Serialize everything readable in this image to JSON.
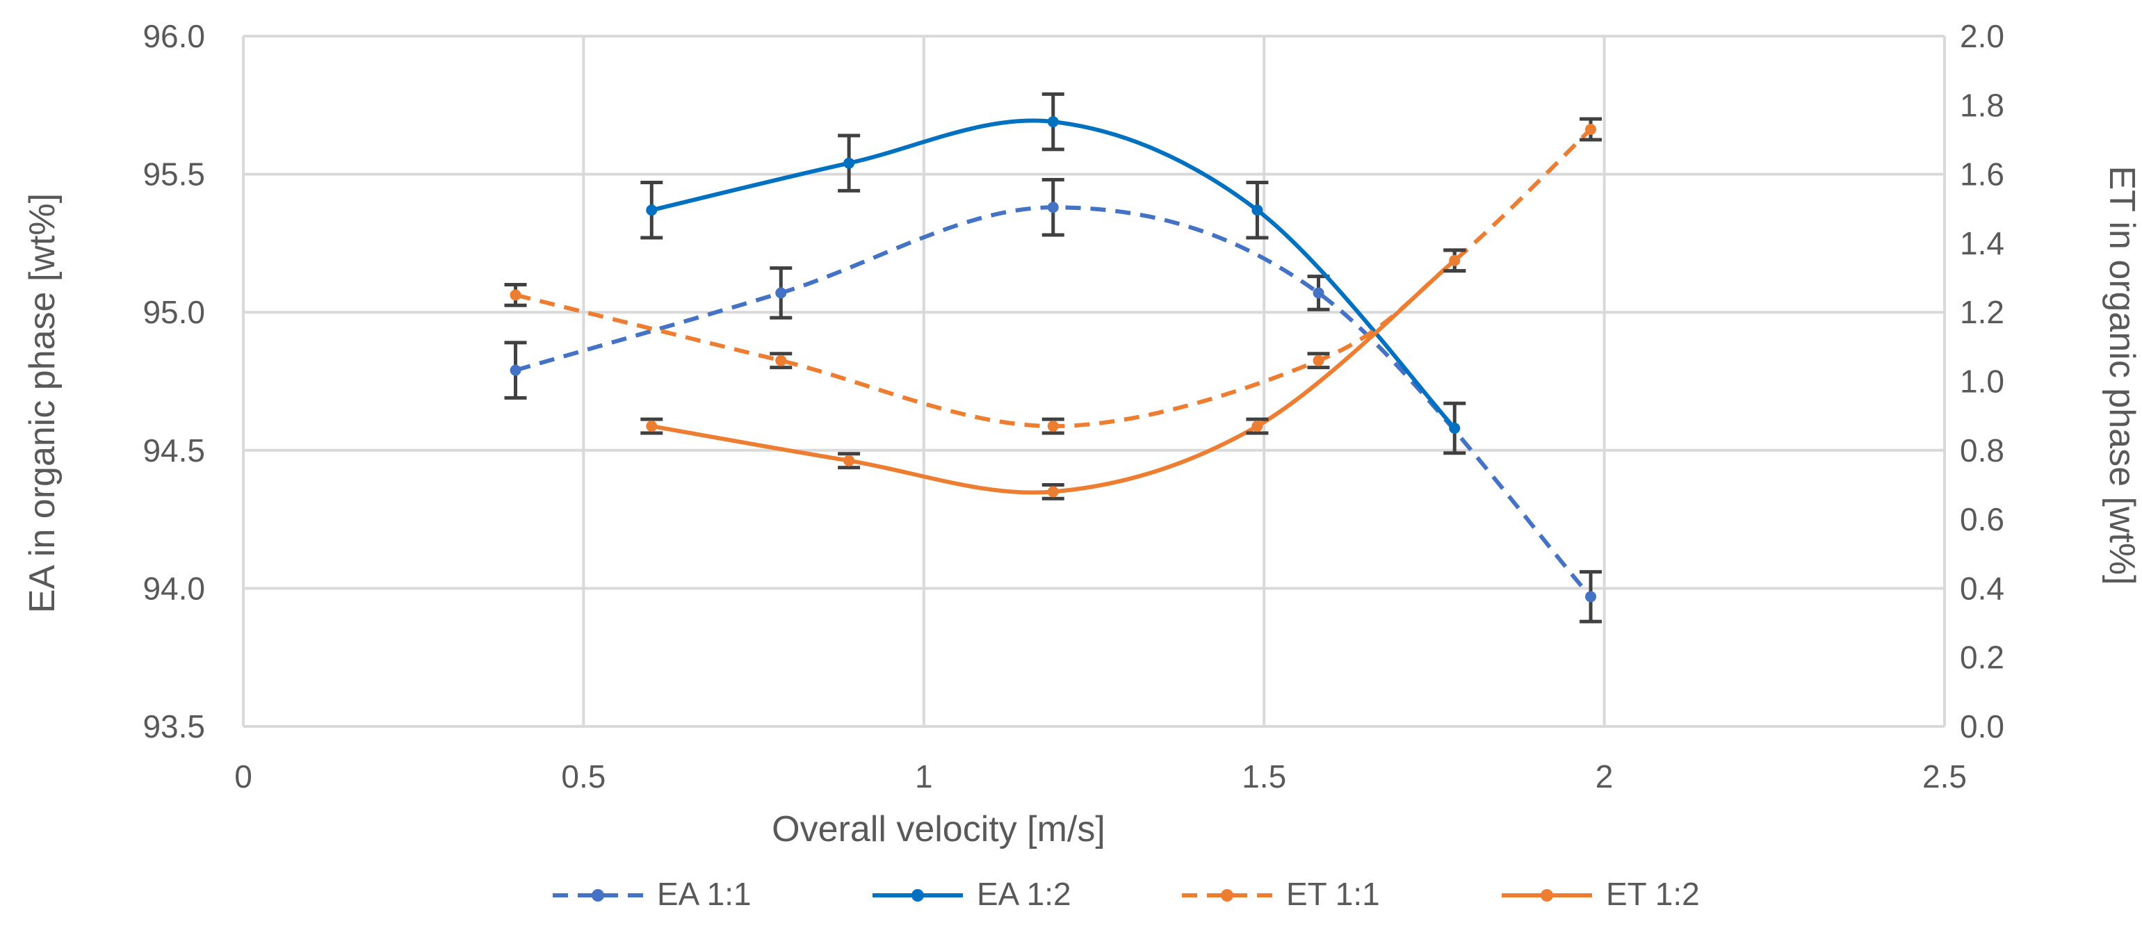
{
  "chart_data": {
    "type": "line",
    "x_axis": {
      "label": "Overall velocity [m/s]",
      "range": [
        0,
        2.5
      ],
      "ticks": [
        0,
        0.5,
        1,
        1.5,
        2,
        2.5
      ],
      "tick_labels": [
        "0",
        "0.5",
        "1",
        "1.5",
        "2",
        "2.5"
      ]
    },
    "y_axis_left": {
      "label": "EA in organic phase [wt%]",
      "range": [
        93.5,
        96.0
      ],
      "ticks": [
        93.5,
        94.0,
        94.5,
        95.0,
        95.5,
        96.0
      ],
      "tick_labels": [
        "93.5",
        "94.0",
        "94.5",
        "95.0",
        "95.5",
        "96.0"
      ]
    },
    "y_axis_right": {
      "label": "ET in organic phase [wt%]",
      "range": [
        0,
        2.0
      ],
      "ticks": [
        0,
        0.2,
        0.4,
        0.6,
        0.8,
        1.0,
        1.2,
        1.4,
        1.6,
        1.8,
        2.0
      ],
      "tick_labels": [
        "0.0",
        "0.2",
        "0.4",
        "0.6",
        "0.8",
        "1.0",
        "1.2",
        "1.4",
        "1.6",
        "1.8",
        "2.0"
      ]
    },
    "grid": true,
    "legend_position": "bottom",
    "series": [
      {
        "name": "EA 1:1",
        "axis": "left",
        "color": "#4472C4",
        "dash": true,
        "x": [
          0.4,
          0.79,
          1.19,
          1.58,
          1.98
        ],
        "y": [
          94.79,
          95.07,
          95.38,
          95.07,
          93.97
        ],
        "err": [
          0.1,
          0.09,
          0.1,
          0.06,
          0.09
        ]
      },
      {
        "name": "EA 1:2",
        "axis": "left",
        "color": "#0070C0",
        "dash": false,
        "x": [
          0.6,
          0.89,
          1.19,
          1.49,
          1.78
        ],
        "y": [
          95.37,
          95.54,
          95.69,
          95.37,
          94.58
        ],
        "err": [
          0.1,
          0.1,
          0.1,
          0.1,
          0.09
        ]
      },
      {
        "name": "ET 1:1",
        "axis": "right",
        "color": "#ED7D31",
        "dash": true,
        "x": [
          0.4,
          0.79,
          1.19,
          1.58,
          1.78,
          1.98
        ],
        "y": [
          1.25,
          1.06,
          0.87,
          1.06,
          1.35,
          1.73
        ],
        "err": [
          0.03,
          0.02,
          0.02,
          0.02,
          0.03,
          0.03
        ]
      },
      {
        "name": "ET 1:2",
        "axis": "right",
        "color": "#ED7D31",
        "dash": false,
        "x": [
          0.6,
          0.89,
          1.19,
          1.49,
          1.78
        ],
        "y": [
          0.87,
          0.77,
          0.68,
          0.87,
          1.35
        ],
        "err": [
          0.02,
          0.02,
          0.02,
          0.02,
          0.03
        ]
      }
    ]
  }
}
